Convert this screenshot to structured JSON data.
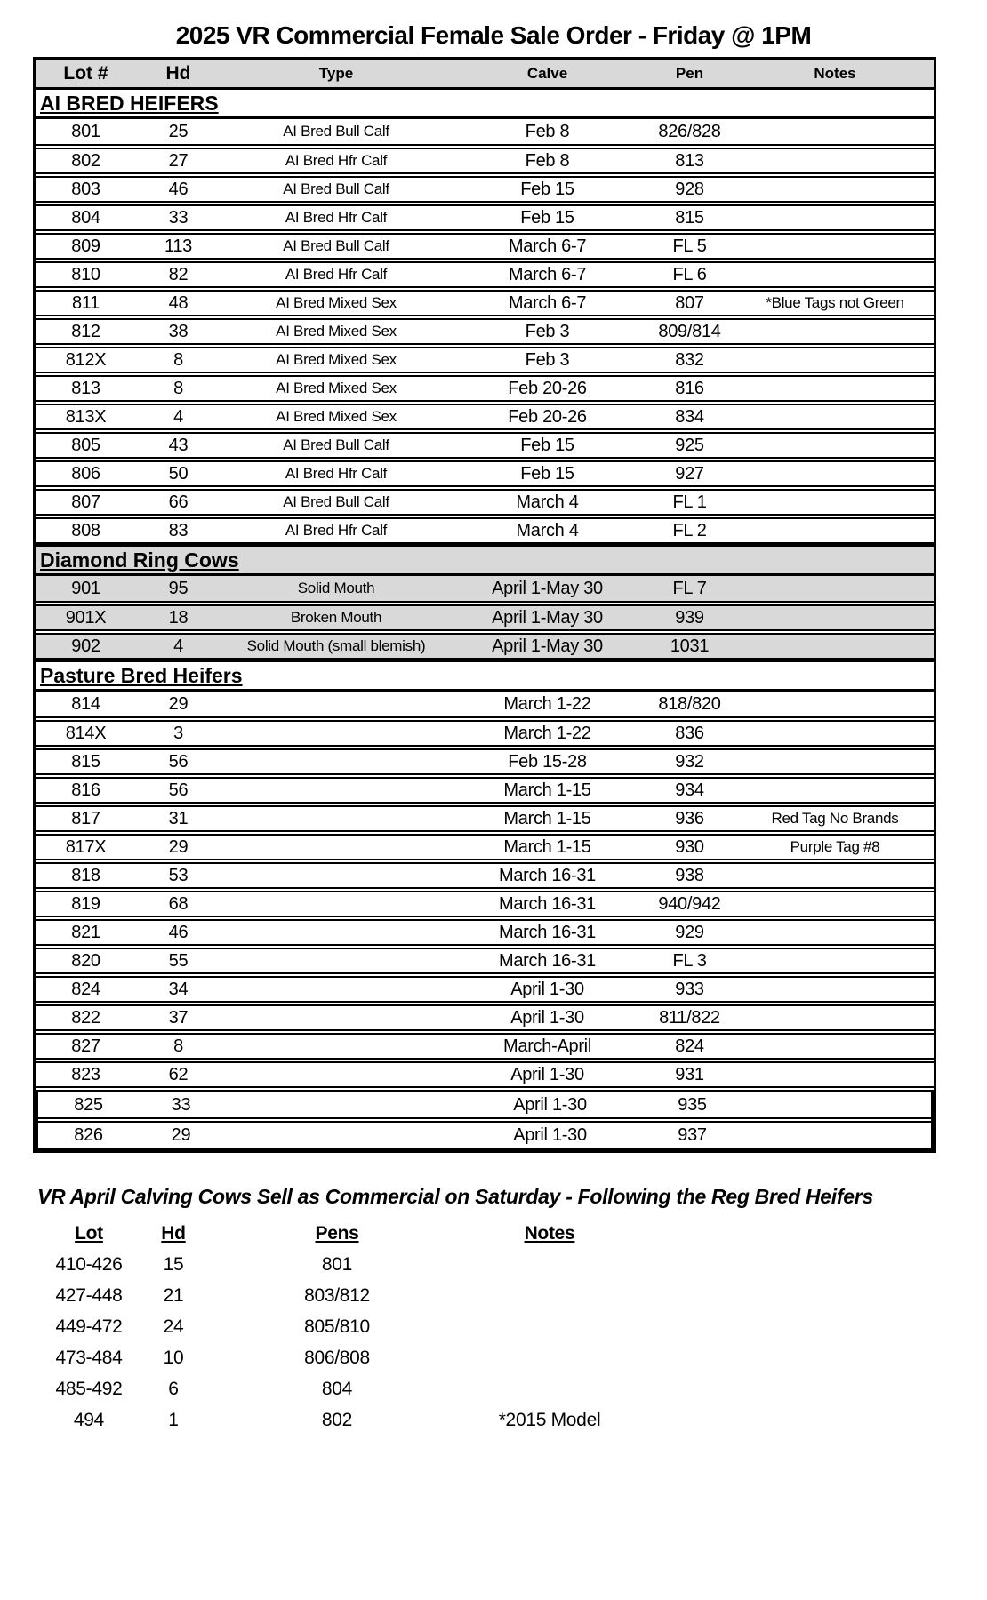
{
  "title": "2025 VR Commercial Female Sale Order  - Friday @ 1PM",
  "table": {
    "columns": [
      "Lot #",
      "Hd",
      "Type",
      "Calve",
      "Pen",
      "Notes"
    ],
    "header_bg": "#d9d9d9",
    "shaded_row_bg": "#d9d9d9",
    "sections": [
      {
        "name": "AI BRED HEIFERS",
        "shaded": false,
        "rows": [
          {
            "lot": "801",
            "hd": "25",
            "type": "AI Bred Bull Calf",
            "calve": "Feb 8",
            "pen": "826/828",
            "notes": ""
          },
          {
            "lot": "802",
            "hd": "27",
            "type": "AI Bred Hfr Calf",
            "calve": "Feb 8",
            "pen": "813",
            "notes": ""
          },
          {
            "lot": "803",
            "hd": "46",
            "type": "AI Bred Bull Calf",
            "calve": "Feb 15",
            "pen": "928",
            "notes": ""
          },
          {
            "lot": "804",
            "hd": "33",
            "type": "AI Bred Hfr Calf",
            "calve": "Feb 15",
            "pen": "815",
            "notes": ""
          },
          {
            "lot": "809",
            "hd": "113",
            "type": "AI Bred Bull Calf",
            "calve": "March 6-7",
            "pen": "FL 5",
            "notes": ""
          },
          {
            "lot": "810",
            "hd": "82",
            "type": "AI Bred Hfr Calf",
            "calve": "March 6-7",
            "pen": "FL 6",
            "notes": ""
          },
          {
            "lot": "811",
            "hd": "48",
            "type": "AI Bred Mixed Sex",
            "calve": "March 6-7",
            "pen": "807",
            "notes": "*Blue Tags not Green"
          },
          {
            "lot": "812",
            "hd": "38",
            "type": "AI Bred Mixed Sex",
            "calve": "Feb 3",
            "pen": "809/814",
            "notes": ""
          },
          {
            "lot": "812X",
            "hd": "8",
            "type": "AI Bred Mixed Sex",
            "calve": "Feb 3",
            "pen": "832",
            "notes": ""
          },
          {
            "lot": "813",
            "hd": "8",
            "type": "AI Bred Mixed Sex",
            "calve": "Feb 20-26",
            "pen": "816",
            "notes": ""
          },
          {
            "lot": "813X",
            "hd": "4",
            "type": "AI Bred Mixed Sex",
            "calve": "Feb 20-26",
            "pen": "834",
            "notes": ""
          },
          {
            "lot": "805",
            "hd": "43",
            "type": "AI Bred Bull Calf",
            "calve": "Feb 15",
            "pen": "925",
            "notes": ""
          },
          {
            "lot": "806",
            "hd": "50",
            "type": "AI Bred Hfr Calf",
            "calve": "Feb 15",
            "pen": "927",
            "notes": ""
          },
          {
            "lot": "807",
            "hd": "66",
            "type": "AI Bred Bull Calf",
            "calve": "March 4",
            "pen": "FL 1",
            "notes": ""
          },
          {
            "lot": "808",
            "hd": "83",
            "type": "AI Bred Hfr Calf",
            "calve": "March 4",
            "pen": "FL 2",
            "notes": ""
          }
        ]
      },
      {
        "name": "Diamond Ring Cows",
        "shaded": true,
        "rows": [
          {
            "lot": "901",
            "hd": "95",
            "type": "Solid Mouth",
            "calve": "April 1-May 30",
            "pen": "FL 7",
            "notes": ""
          },
          {
            "lot": "901X",
            "hd": "18",
            "type": "Broken Mouth",
            "calve": "April 1-May 30",
            "pen": "939",
            "notes": ""
          },
          {
            "lot": "902",
            "hd": "4",
            "type": "Solid Mouth (small blemish)",
            "calve": "April 1-May 30",
            "pen": "1031",
            "notes": ""
          }
        ]
      },
      {
        "name": "Pasture Bred Heifers",
        "shaded": false,
        "rows": [
          {
            "lot": "814",
            "hd": "29",
            "type": "",
            "calve": "March 1-22",
            "pen": "818/820",
            "notes": ""
          },
          {
            "lot": "814X",
            "hd": "3",
            "type": "",
            "calve": "March 1-22",
            "pen": "836",
            "notes": ""
          },
          {
            "lot": "815",
            "hd": "56",
            "type": "",
            "calve": "Feb 15-28",
            "pen": "932",
            "notes": ""
          },
          {
            "lot": "816",
            "hd": "56",
            "type": "",
            "calve": "March 1-15",
            "pen": "934",
            "notes": ""
          },
          {
            "lot": "817",
            "hd": "31",
            "type": "",
            "calve": "March 1-15",
            "pen": "936",
            "notes": "Red Tag No Brands"
          },
          {
            "lot": "817X",
            "hd": "29",
            "type": "",
            "calve": "March 1-15",
            "pen": "930",
            "notes": "Purple Tag #8"
          },
          {
            "lot": "818",
            "hd": "53",
            "type": "",
            "calve": "March 16-31",
            "pen": "938",
            "notes": ""
          },
          {
            "lot": "819",
            "hd": "68",
            "type": "",
            "calve": "March 16-31",
            "pen": "940/942",
            "notes": ""
          },
          {
            "lot": "821",
            "hd": "46",
            "type": "",
            "calve": "March 16-31",
            "pen": "929",
            "notes": ""
          },
          {
            "lot": "820",
            "hd": "55",
            "type": "",
            "calve": "March 16-31",
            "pen": "FL 3",
            "notes": ""
          },
          {
            "lot": "824",
            "hd": "34",
            "type": "",
            "calve": "April 1-30",
            "pen": "933",
            "notes": ""
          },
          {
            "lot": "822",
            "hd": "37",
            "type": "",
            "calve": "April 1-30",
            "pen": "811/822",
            "notes": ""
          },
          {
            "lot": "827",
            "hd": "8",
            "type": "",
            "calve": "March-April",
            "pen": "824",
            "notes": ""
          },
          {
            "lot": "823",
            "hd": "62",
            "type": "",
            "calve": "April 1-30",
            "pen": "931",
            "notes": ""
          },
          {
            "lot": "825",
            "hd": "33",
            "type": "",
            "calve": "April 1-30",
            "pen": "935",
            "notes": "",
            "boxed": true
          },
          {
            "lot": "826",
            "hd": "29",
            "type": "",
            "calve": "April 1-30",
            "pen": "937",
            "notes": "",
            "boxed": true
          }
        ]
      }
    ]
  },
  "footer": {
    "heading": "VR April Calving Cows Sell as Commercial on Saturday - Following the Reg Bred Heifers",
    "columns": [
      "Lot",
      "Hd",
      "Pens",
      "Notes"
    ],
    "rows": [
      {
        "lot": "410-426",
        "hd": "15",
        "pens": "801",
        "notes": ""
      },
      {
        "lot": "427-448",
        "hd": "21",
        "pens": "803/812",
        "notes": ""
      },
      {
        "lot": "449-472",
        "hd": "24",
        "pens": "805/810",
        "notes": ""
      },
      {
        "lot": "473-484",
        "hd": "10",
        "pens": "806/808",
        "notes": ""
      },
      {
        "lot": "485-492",
        "hd": "6",
        "pens": "804",
        "notes": ""
      },
      {
        "lot": "494",
        "hd": "1",
        "pens": "802",
        "notes": "*2015 Model"
      }
    ]
  }
}
